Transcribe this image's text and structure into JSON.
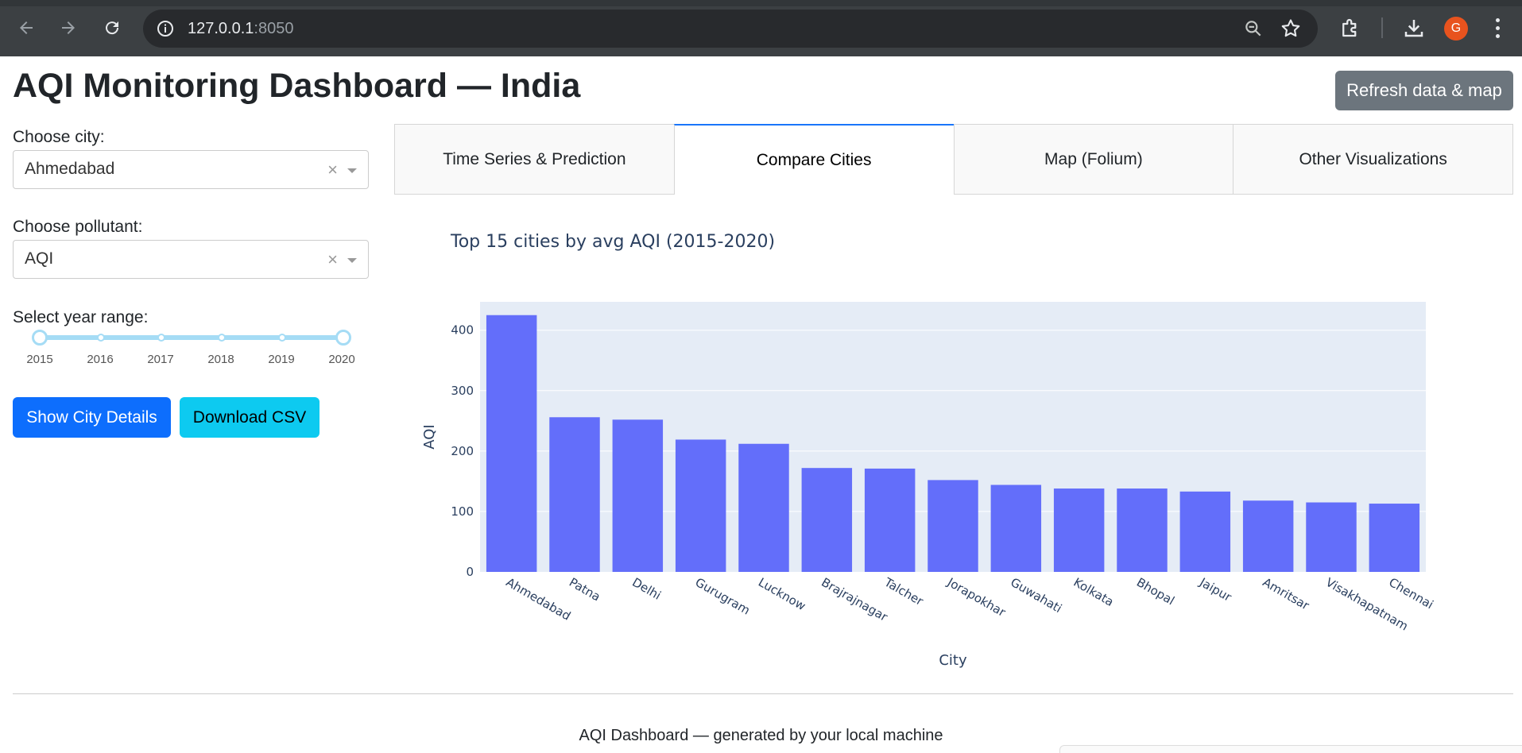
{
  "browser": {
    "url_host": "127.0.0.1",
    "url_port": ":8050",
    "profile_initial": "G"
  },
  "header": {
    "title": "AQI Monitoring Dashboard — India",
    "refresh_label": "Refresh data & map"
  },
  "controls": {
    "city_label": "Choose city:",
    "city_value": "Ahmedabad",
    "pollutant_label": "Choose pollutant:",
    "pollutant_value": "AQI",
    "clear_symbol": "×",
    "year_label": "Select year range:",
    "year_marks": [
      "2015",
      "2016",
      "2017",
      "2018",
      "2019",
      "2020"
    ],
    "year_range": [
      2015,
      2020
    ],
    "show_details_label": "Show City Details",
    "download_label": "Download CSV"
  },
  "tabs": [
    {
      "label": "Time Series & Prediction",
      "selected": false
    },
    {
      "label": "Compare Cities",
      "selected": true
    },
    {
      "label": "Map (Folium)",
      "selected": false
    },
    {
      "label": "Other Visualizations",
      "selected": false
    }
  ],
  "chart_data": {
    "type": "bar",
    "title": "Top 15 cities by avg AQI (2015-2020)",
    "xlabel": "City",
    "ylabel": "AQI",
    "categories": [
      "Ahmedabad",
      "Patna",
      "Delhi",
      "Gurugram",
      "Lucknow",
      "Brajrajnagar",
      "Talcher",
      "Jorapokhar",
      "Guwahati",
      "Kolkata",
      "Bhopal",
      "Jaipur",
      "Amritsar",
      "Visakhapatnam",
      "Chennai"
    ],
    "values": [
      425,
      256,
      252,
      219,
      212,
      172,
      171,
      152,
      144,
      138,
      138,
      133,
      118,
      115,
      113
    ],
    "ylim": [
      0,
      447
    ],
    "yticks": [
      0,
      100,
      200,
      300,
      400
    ],
    "grid": true,
    "bar_color": "#636efa",
    "plot_bg": "#e5ecf6"
  },
  "footer": {
    "text": "AQI Dashboard — generated by your local machine"
  }
}
